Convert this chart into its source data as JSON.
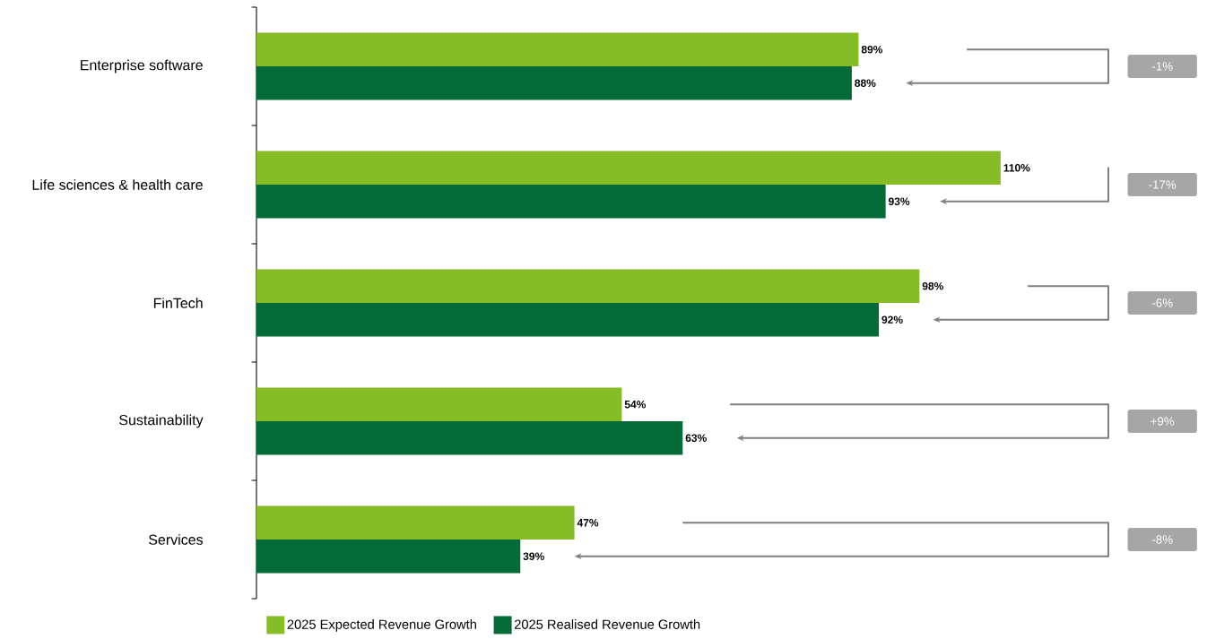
{
  "chart_data": {
    "type": "bar",
    "orientation": "horizontal",
    "categories": [
      "Enterprise software",
      "Life sciences & health care",
      "FinTech",
      "Sustainability",
      "Services"
    ],
    "series": [
      {
        "name": "2025 Expected Revenue Growth",
        "color": "#86bc25",
        "values": [
          89,
          110,
          98,
          54,
          47
        ],
        "value_labels": [
          "89%",
          "110%",
          "98%",
          "54%",
          "47%"
        ]
      },
      {
        "name": "2025 Realised Revenue Growth",
        "color": "#046a38",
        "values": [
          88,
          93,
          92,
          63,
          39
        ],
        "value_labels": [
          "88%",
          "93%",
          "92%",
          "63%",
          "39%"
        ]
      }
    ],
    "annotations": [
      "-1%",
      "-17%",
      "-6%",
      "+9%",
      "-8%"
    ],
    "legend": "bottom"
  }
}
